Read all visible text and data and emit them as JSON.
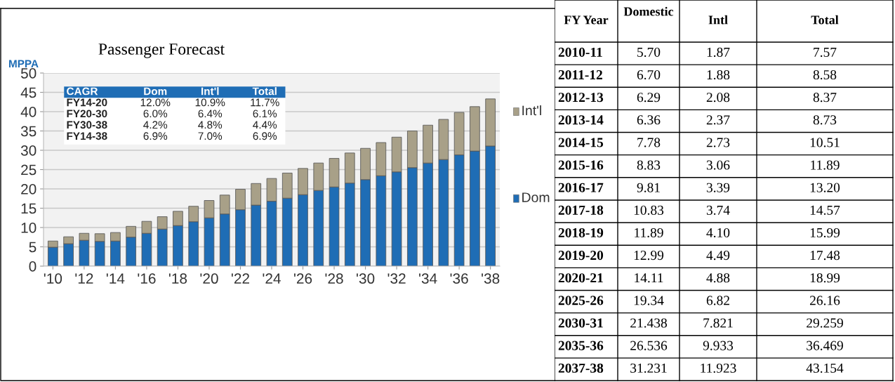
{
  "chart_data": [
    {
      "type": "bar",
      "title": "Passenger Forecast",
      "ylabel": "MPPA",
      "stacked": true,
      "legend": "right",
      "grid": "y",
      "categories": [
        "'10",
        null,
        "'12",
        null,
        "'14",
        null,
        "'16",
        null,
        "'18",
        null,
        "'20",
        null,
        "'22",
        null,
        "'24",
        null,
        "'26",
        null,
        "'28",
        null,
        "'30",
        null,
        "'32",
        null,
        "'34",
        null,
        "'36",
        null,
        "'38"
      ],
      "series": [
        {
          "name": "Dom",
          "color": "#1f6db5",
          "values": [
            4.9,
            5.8,
            6.7,
            6.4,
            6.5,
            7.5,
            8.5,
            9.6,
            10.5,
            11.5,
            12.5,
            13.5,
            14.6,
            15.8,
            16.8,
            17.6,
            18.5,
            19.6,
            20.5,
            21.5,
            22.4,
            23.4,
            24.4,
            25.5,
            26.7,
            27.6,
            28.8,
            29.8,
            31.1
          ]
        },
        {
          "name": "Int'l",
          "color": "#a8a088",
          "values": [
            1.6,
            1.8,
            1.8,
            2.0,
            2.2,
            2.8,
            3.1,
            3.2,
            3.7,
            4.0,
            4.5,
            4.9,
            5.3,
            5.6,
            5.9,
            6.5,
            6.8,
            7.1,
            7.4,
            7.8,
            8.1,
            8.6,
            9.0,
            9.5,
            9.8,
            10.4,
            11.0,
            11.5,
            12.2
          ]
        }
      ],
      "ylim": [
        0,
        50
      ],
      "yticks": [
        0,
        5,
        10,
        15,
        20,
        25,
        30,
        35,
        40,
        45,
        50
      ],
      "annotations": [
        "CAGR",
        "Dom",
        "Int'l",
        "Total",
        "FY14-20",
        "12.0%",
        "10.9%",
        "11.7%",
        "FY20-30",
        "6.0%",
        "6.4%",
        "6.1%",
        "FY30-38",
        "4.2%",
        "4.8%",
        "4.4%",
        "FY14-38",
        "6.9%",
        "7.0%",
        "6.9%"
      ]
    },
    {
      "type": "other",
      "categories": [
        "FY Year",
        "Domestic",
        "Intl",
        "Total"
      ],
      "y_categories": [
        "2010-11",
        "2011-12",
        "2012-13",
        "2013-14",
        "2014-15",
        "2015-16",
        "2016-17",
        "2017-18",
        "2018-19",
        "2019-20",
        "2020-21",
        "2025-26",
        "2030-31",
        "2035-36",
        "2037-38"
      ],
      "cell_labels": [
        [
          "5.70",
          "1.87",
          "7.57"
        ],
        [
          "6.70",
          "1.88",
          "8.58"
        ],
        [
          "6.29",
          "2.08",
          "8.37"
        ],
        [
          "6.36",
          "2.37",
          "8.73"
        ],
        [
          "7.78",
          "2.73",
          "10.51"
        ],
        [
          "8.83",
          "3.06",
          "11.89"
        ],
        [
          "9.81",
          "3.39",
          "13.20"
        ],
        [
          "10.83",
          "3.74",
          "14.57"
        ],
        [
          "11.89",
          "4.10",
          "15.99"
        ],
        [
          "12.99",
          "4.49",
          "17.48"
        ],
        [
          "14.11",
          "4.88",
          "18.99"
        ],
        [
          "19.34",
          "6.82",
          "26.16"
        ],
        [
          "21.438",
          "7.821",
          "29.259"
        ],
        [
          "26.536",
          "9.933",
          "36.469"
        ],
        [
          "31.231",
          "11.923",
          "43.154"
        ]
      ]
    }
  ]
}
